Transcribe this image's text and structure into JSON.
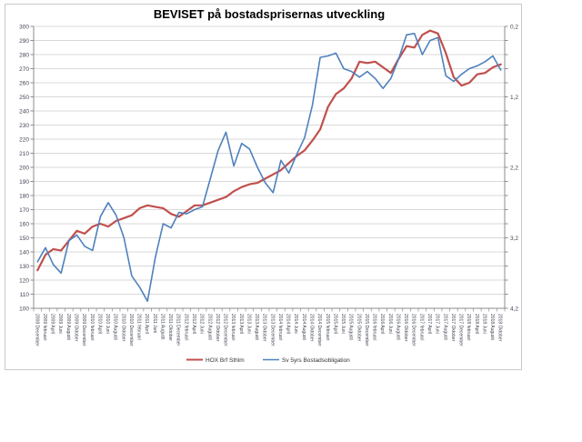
{
  "title": "BEVISET på bostadsprisernas utveckling",
  "colors": {
    "series_red": "#C0504D",
    "series_blue": "#4F81BD",
    "gridline": "#D9D9D9",
    "axis_line": "#8C8C8C",
    "tick_label": "#404455",
    "frame_border": "#C9C9C9",
    "title_text": "#000000"
  },
  "chart_data": {
    "type": "line",
    "title": "BEVISET på bostadsprisernas utveckling",
    "grid": true,
    "legend_position": "bottom",
    "categories": [
      "2008 December",
      "2009 februari",
      "2009 April",
      "2009 Juni",
      "2009 Augusti",
      "2009 Oktober",
      "2009 December",
      "2010 februari",
      "2010 April",
      "2010 Juni",
      "2010 Augusti",
      "2010 Oktober",
      "2010 December",
      "2011 februari",
      "2011 April",
      "2011 Juni",
      "2011 Augusti",
      "2011 Oktober",
      "2011 December",
      "2012 februari",
      "2012 April",
      "2012 Juni",
      "2012 Augusti",
      "2012 Oktober",
      "2012 December",
      "2013 februari",
      "2013 April",
      "2013 Juni",
      "2013 Augusti",
      "2013 Oktober",
      "2013 December",
      "2014 februari",
      "2014 April",
      "2014 Juni",
      "2014 Augusti",
      "2014 Oktober",
      "2014 December",
      "2015 februari",
      "2015 April",
      "2015 Juni",
      "2015 Augusti",
      "2015 Oktober",
      "2015 December",
      "2016 februari",
      "2016 April",
      "2016 Juni",
      "2016 Augusti",
      "2016 Oktober",
      "2016 December",
      "2017 februari",
      "2017 April",
      "2017 Juni",
      "2017 Augusti",
      "2017 Oktober",
      "2017 December",
      "2018 februari",
      "2018 April",
      "2018 Juni",
      "2018 Augusti",
      "2018 Oktober"
    ],
    "series": [
      {
        "name": "HOX Brf Sthlm",
        "color": "#C0504D",
        "axis": "left",
        "values": [
          127,
          138,
          142,
          141,
          148,
          155,
          153,
          158,
          160,
          158,
          162,
          164,
          166,
          171,
          173,
          172,
          171,
          167,
          165,
          169,
          173,
          173,
          175,
          177,
          179,
          183,
          186,
          188,
          189,
          192,
          195,
          198,
          203,
          208,
          212,
          219,
          227,
          243,
          252,
          256,
          263,
          275,
          274,
          275,
          271,
          267,
          277,
          286,
          285,
          294,
          297,
          295,
          281,
          264,
          258,
          260,
          266,
          267,
          271,
          273
        ]
      },
      {
        "name": "Sv 5yrs Bostadsobligation",
        "color": "#4F81BD",
        "axis": "right",
        "values": [
          3.54,
          3.34,
          3.58,
          3.7,
          3.24,
          3.16,
          3.32,
          3.38,
          2.9,
          2.7,
          2.88,
          3.2,
          3.74,
          3.9,
          4.1,
          3.48,
          3.0,
          3.06,
          2.84,
          2.86,
          2.8,
          2.76,
          2.36,
          1.96,
          1.7,
          2.18,
          1.86,
          1.94,
          2.2,
          2.42,
          2.56,
          2.1,
          2.28,
          2.02,
          1.78,
          1.32,
          0.64,
          0.62,
          0.58,
          0.8,
          0.84,
          0.92,
          0.84,
          0.94,
          1.08,
          0.94,
          0.66,
          0.32,
          0.3,
          0.6,
          0.4,
          0.36,
          0.9,
          0.98,
          0.88,
          0.8,
          0.76,
          0.7,
          0.62,
          0.82
        ]
      }
    ],
    "left_axis": {
      "min": 100,
      "max": 300,
      "step": 10,
      "tick_labels": [
        "300",
        "290",
        "280",
        "270",
        "260",
        "250",
        "240",
        "230",
        "220",
        "210",
        "200",
        "190",
        "180",
        "170",
        "160",
        "150",
        "140",
        "130",
        "120",
        "110",
        "100"
      ]
    },
    "right_axis": {
      "min": 0.2,
      "max": 4.2,
      "step": 1.0,
      "minor_step": 0.2,
      "inverted": true,
      "tick_labels": [
        "0,2",
        "1,2",
        "2,2",
        "3,2",
        "4,2"
      ]
    }
  },
  "legend": {
    "item1": "HOX Brf Sthlm",
    "item2": "Sv 5yrs Bostadsobligation"
  }
}
